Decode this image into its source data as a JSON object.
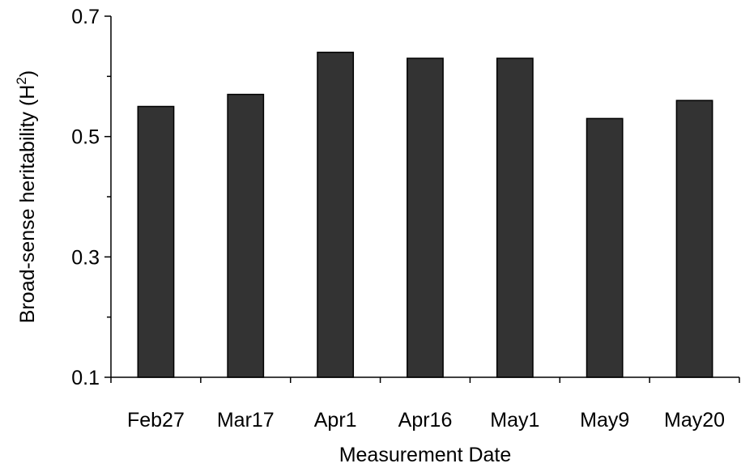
{
  "chart_data": {
    "type": "bar",
    "title": "",
    "xlabel": "Measurement Date",
    "ylabel": {
      "prefix": "Broad-sense heritability (H",
      "superscript": "2",
      "suffix": ")"
    },
    "categories": [
      "Feb27",
      "Mar17",
      "Apr1",
      "Apr16",
      "May1",
      "May9",
      "May20"
    ],
    "values": [
      0.55,
      0.57,
      0.64,
      0.63,
      0.63,
      0.53,
      0.56
    ],
    "ylim": [
      0.1,
      0.7
    ],
    "yticks": [
      {
        "value": 0.1,
        "label": "0.1"
      },
      {
        "value": 0.3,
        "label": "0.3"
      },
      {
        "value": 0.5,
        "label": "0.5"
      },
      {
        "value": 0.7,
        "label": "0.7"
      }
    ],
    "minor_yticks": [
      0.2,
      0.4,
      0.6
    ],
    "grid": false,
    "legend": "none",
    "bar_color": "#333333"
  }
}
